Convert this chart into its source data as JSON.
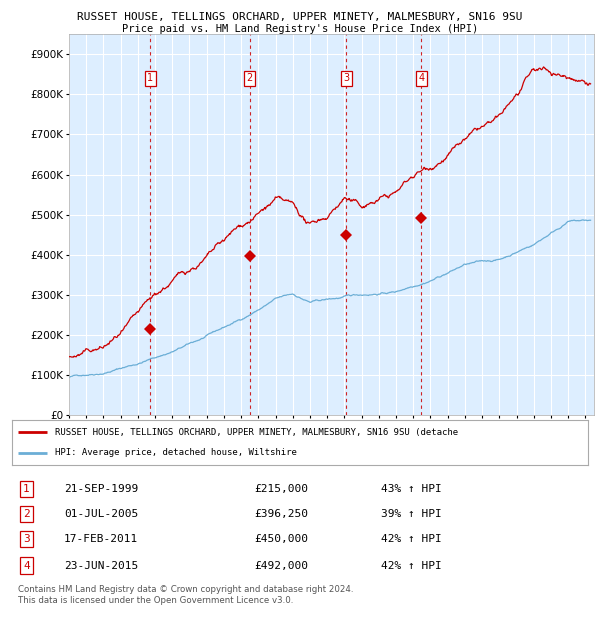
{
  "title1": "RUSSET HOUSE, TELLINGS ORCHARD, UPPER MINETY, MALMESBURY, SN16 9SU",
  "title2": "Price paid vs. HM Land Registry's House Price Index (HPI)",
  "xlim": [
    1995.0,
    2025.5
  ],
  "ylim": [
    0,
    950000
  ],
  "yticks": [
    0,
    100000,
    200000,
    300000,
    400000,
    500000,
    600000,
    700000,
    800000,
    900000
  ],
  "ytick_labels": [
    "£0",
    "£100K",
    "£200K",
    "£300K",
    "£400K",
    "£500K",
    "£600K",
    "£700K",
    "£800K",
    "£900K"
  ],
  "hpi_color": "#6baed6",
  "price_color": "#cc0000",
  "marker_color": "#cc0000",
  "dashed_color": "#cc0000",
  "bg_color": "#ddeeff",
  "plot_bg": "#ffffff",
  "sales": [
    {
      "num": 1,
      "year": 1999.72,
      "price": 215000,
      "label": "1"
    },
    {
      "num": 2,
      "year": 2005.5,
      "price": 396250,
      "label": "2"
    },
    {
      "num": 3,
      "year": 2011.12,
      "price": 450000,
      "label": "3"
    },
    {
      "num": 4,
      "year": 2015.47,
      "price": 492000,
      "label": "4"
    }
  ],
  "table_rows": [
    {
      "num": "1",
      "date": "21-SEP-1999",
      "price": "£215,000",
      "hpi": "43% ↑ HPI"
    },
    {
      "num": "2",
      "date": "01-JUL-2005",
      "price": "£396,250",
      "hpi": "39% ↑ HPI"
    },
    {
      "num": "3",
      "date": "17-FEB-2011",
      "price": "£450,000",
      "hpi": "42% ↑ HPI"
    },
    {
      "num": "4",
      "date": "23-JUN-2015",
      "price": "£492,000",
      "hpi": "42% ↑ HPI"
    }
  ],
  "legend_label1": "RUSSET HOUSE, TELLINGS ORCHARD, UPPER MINETY, MALMESBURY, SN16 9SU (detache",
  "legend_label2": "HPI: Average price, detached house, Wiltshire",
  "footnote1": "Contains HM Land Registry data © Crown copyright and database right 2024.",
  "footnote2": "This data is licensed under the Open Government Licence v3.0."
}
